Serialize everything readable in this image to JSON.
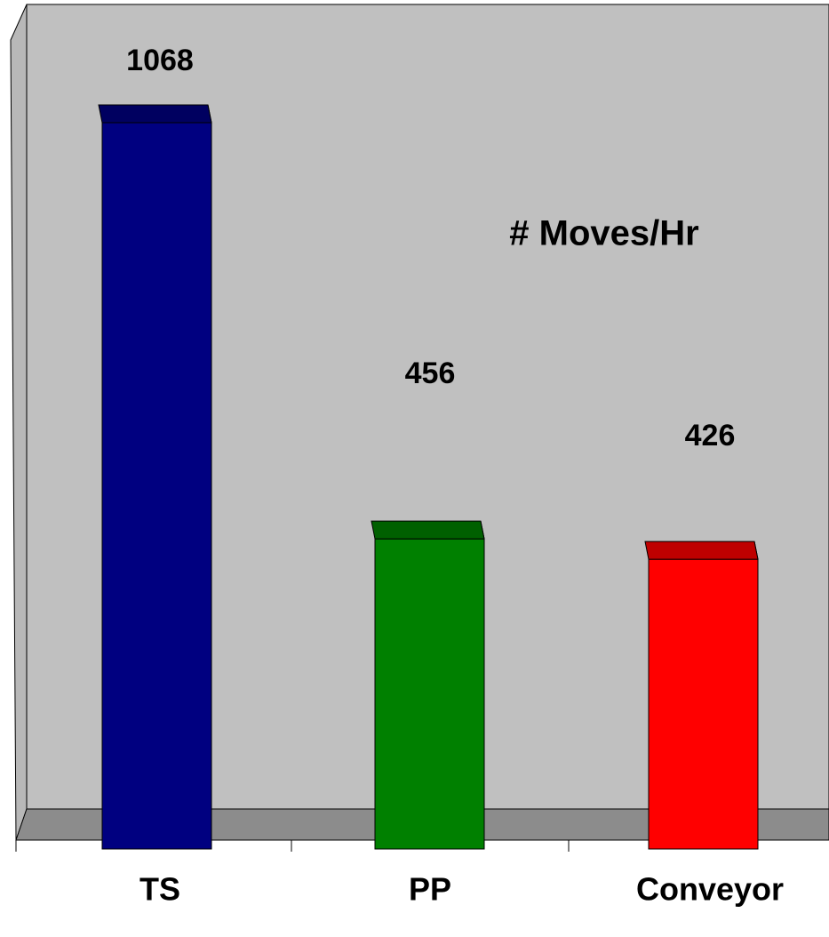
{
  "chart_data": {
    "type": "bar3d",
    "title": "# Moves/Hr",
    "categories": [
      "TS",
      "PP",
      "Conveyor"
    ],
    "series": [
      {
        "values": [
          1068,
          456,
          426
        ],
        "colors": [
          "#000080",
          "#008000",
          "#ff0000"
        ]
      }
    ]
  }
}
